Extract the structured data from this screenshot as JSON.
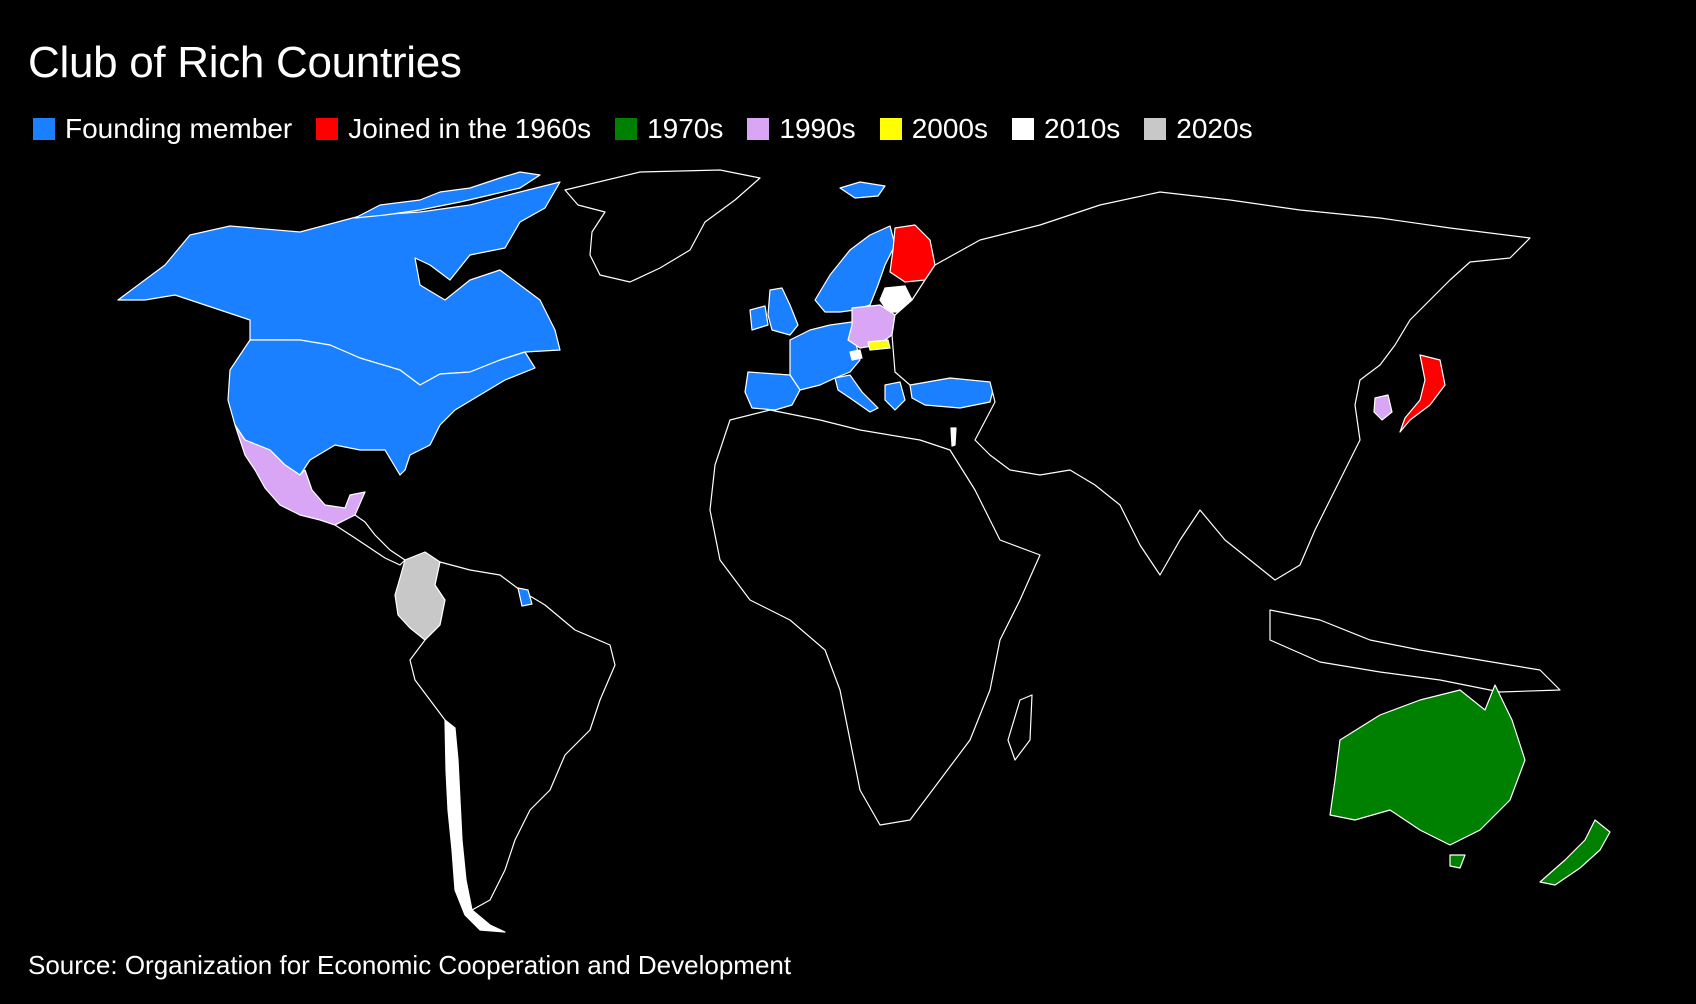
{
  "title": "Club of Rich Countries",
  "legend": [
    {
      "label": "Founding member",
      "color": "#1a80ff"
    },
    {
      "label": "Joined in the 1960s",
      "color": "#ff0000"
    },
    {
      "label": "1970s",
      "color": "#008000"
    },
    {
      "label": "1990s",
      "color": "#d8a6f4"
    },
    {
      "label": "2000s",
      "color": "#ffff00"
    },
    {
      "label": "2010s",
      "color": "#ffffff"
    },
    {
      "label": "2020s",
      "color": "#c8c8c8"
    }
  ],
  "source": "Source: Organization for Economic Cooperation and Development",
  "colors": {
    "background": "#000000",
    "nonmember": "#000000",
    "border": "#ffffff"
  }
}
